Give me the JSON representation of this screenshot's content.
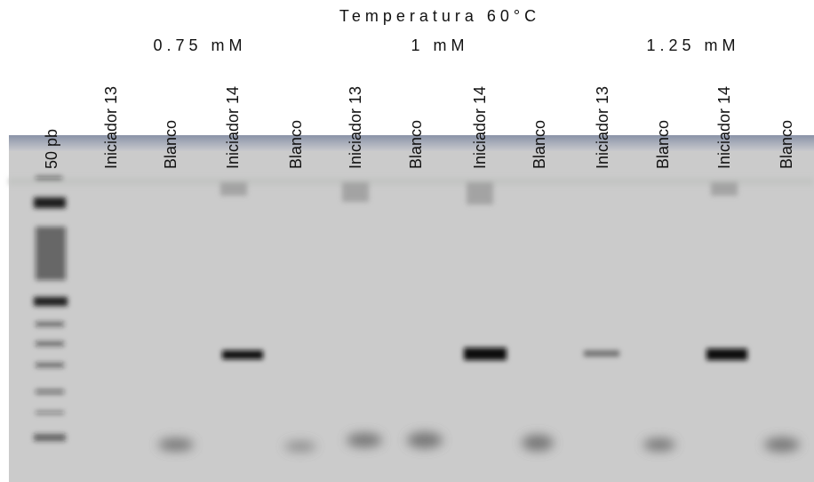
{
  "title": "Temperatura 60°C",
  "groups": [
    "0.75 mM",
    "1 mM",
    "1.25 mM"
  ],
  "lanes": [
    "50 pb",
    "Iniciador 13",
    "Blanco",
    "Iniciador 14",
    "Blanco",
    "Iniciador 13",
    "Blanco",
    "Iniciador 14",
    "Blanco",
    "Iniciador 13",
    "Blanco",
    "Iniciador 14",
    "Blanco"
  ]
}
